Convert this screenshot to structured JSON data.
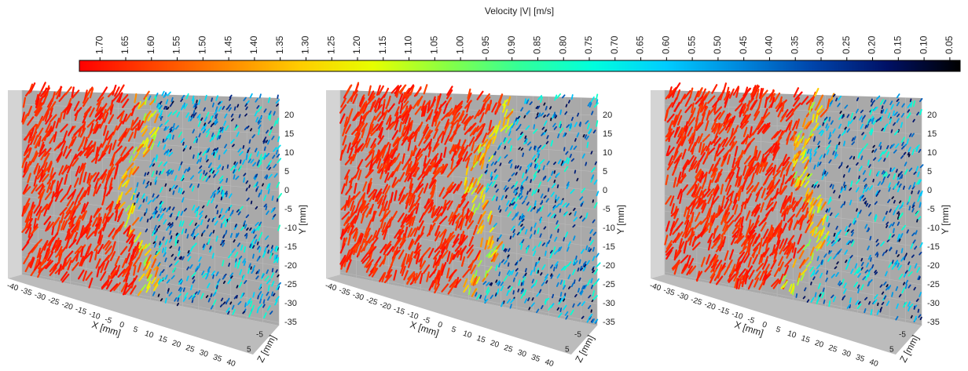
{
  "chart_data": {
    "type": "vector-field-3d",
    "colorbar": {
      "title": "Velocity |V| [m/s]",
      "lim": [
        1.74,
        0.03
      ],
      "colors": [
        "#ff0000",
        "#ff4400",
        "#ff8800",
        "#ffcc00",
        "#e6ff00",
        "#88ff44",
        "#33ff99",
        "#00ffdd",
        "#00ccff",
        "#0088dd",
        "#0044aa",
        "#001166",
        "#000000"
      ],
      "ticks": [
        {
          "value": 1.7,
          "label": "1.70"
        },
        {
          "value": 1.65,
          "label": "1.65"
        },
        {
          "value": 1.6,
          "label": "1.60"
        },
        {
          "value": 1.55,
          "label": "1.55"
        },
        {
          "value": 1.5,
          "label": "1.50"
        },
        {
          "value": 1.45,
          "label": "1.45"
        },
        {
          "value": 1.4,
          "label": "1.40"
        },
        {
          "value": 1.35,
          "label": "1.35"
        },
        {
          "value": 1.3,
          "label": "1.30"
        },
        {
          "value": 1.25,
          "label": "1.25"
        },
        {
          "value": 1.2,
          "label": "1.20"
        },
        {
          "value": 1.15,
          "label": "1.15"
        },
        {
          "value": 1.1,
          "label": "1.10"
        },
        {
          "value": 1.05,
          "label": "1.05"
        },
        {
          "value": 1.0,
          "label": "1.00"
        },
        {
          "value": 0.95,
          "label": "0.95"
        },
        {
          "value": 0.9,
          "label": "0.90"
        },
        {
          "value": 0.85,
          "label": "0.85"
        },
        {
          "value": 0.8,
          "label": "0.80"
        },
        {
          "value": 0.75,
          "label": "0.75"
        },
        {
          "value": 0.7,
          "label": "0.70"
        },
        {
          "value": 0.65,
          "label": "0.65"
        },
        {
          "value": 0.6,
          "label": "0.60"
        },
        {
          "value": 0.55,
          "label": "0.55"
        },
        {
          "value": 0.5,
          "label": "0.50"
        },
        {
          "value": 0.45,
          "label": "0.45"
        },
        {
          "value": 0.4,
          "label": "0.40"
        },
        {
          "value": 0.35,
          "label": "0.35"
        },
        {
          "value": 0.3,
          "label": "0.30"
        },
        {
          "value": 0.25,
          "label": "0.25"
        },
        {
          "value": 0.2,
          "label": "0.20"
        },
        {
          "value": 0.15,
          "label": "0.15"
        },
        {
          "value": 0.1,
          "label": "0.10"
        },
        {
          "value": 0.05,
          "label": "0.05"
        }
      ]
    },
    "panels": [
      {
        "x_label": "X [mm]",
        "y_label": "Y [mm]",
        "z_label": "Z [mm]",
        "xlim": [
          -40,
          40
        ],
        "ylim": [
          24.6,
          -35.8
        ],
        "zlim": [
          -5,
          5
        ],
        "xticks": [
          -40,
          -35,
          -30,
          -25,
          -20,
          -15,
          -10,
          -5,
          0,
          5,
          10,
          15,
          20,
          25,
          30,
          35,
          40
        ],
        "yticks": [
          20,
          15,
          10,
          5,
          0,
          -5,
          -10,
          -15,
          -20,
          -25,
          -30,
          -35
        ],
        "zticks": [
          -5,
          5
        ]
      },
      {
        "x_label": "X [mm]",
        "y_label": "Y [mm]",
        "z_label": "Z [mm]",
        "xlim": [
          -40,
          40
        ],
        "ylim": [
          24.6,
          -35.8
        ],
        "zlim": [
          -5,
          5
        ],
        "xticks": [
          -40,
          -35,
          -30,
          -25,
          -20,
          -15,
          -10,
          -5,
          0,
          5,
          10,
          15,
          20,
          25,
          30,
          35,
          40
        ],
        "yticks": [
          20,
          15,
          10,
          5,
          0,
          -5,
          -10,
          -15,
          -20,
          -25,
          -30,
          -35
        ],
        "zticks": [
          -5,
          5
        ]
      },
      {
        "x_label": "X [mm]",
        "y_label": "Y [mm]",
        "z_label": "Z [mm]",
        "xlim": [
          -40,
          40
        ],
        "ylim": [
          24.6,
          -35.8
        ],
        "zlim": [
          -5,
          5
        ],
        "xticks": [
          -40,
          -35,
          -30,
          -25,
          -20,
          -15,
          -10,
          -5,
          0,
          5,
          10,
          15,
          20,
          25,
          30,
          35,
          40
        ],
        "yticks": [
          20,
          15,
          10,
          5,
          0,
          -5,
          -10,
          -15,
          -20,
          -25,
          -30,
          -35
        ],
        "zticks": [
          -5,
          5
        ]
      }
    ]
  }
}
